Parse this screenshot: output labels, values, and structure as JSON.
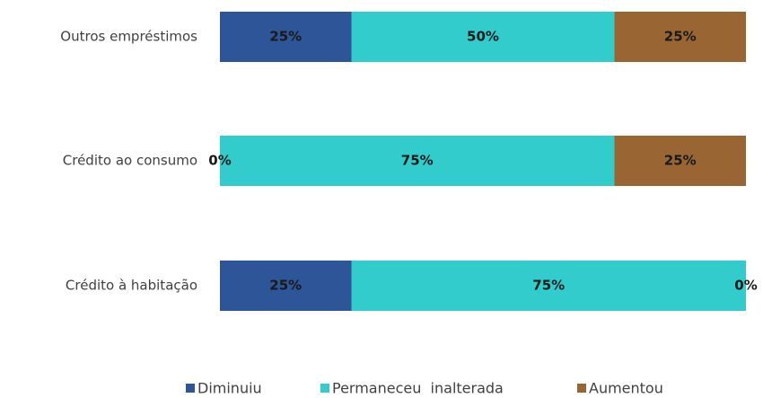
{
  "chart_data": {
    "type": "stacked_bar_horizontal",
    "categories": [
      "Outros empréstimos",
      "Crédito ao consumo",
      "Crédito à habitação"
    ],
    "series": [
      {
        "name": "Diminuiu",
        "color": "#2e5597",
        "values": [
          25,
          0,
          25
        ],
        "value_labels": [
          "25%",
          "0%",
          "25%"
        ]
      },
      {
        "name": "Permaneceu  inalterada",
        "color": "#33cccc",
        "values": [
          50,
          75,
          75
        ],
        "value_labels": [
          "50%",
          "75%",
          "75%"
        ]
      },
      {
        "name": "Aumentou",
        "color": "#996633",
        "values": [
          25,
          25,
          0
        ],
        "value_labels": [
          "25%",
          "25%",
          "0%"
        ]
      }
    ],
    "xlim": [
      0,
      100
    ],
    "legend": "bottom"
  }
}
